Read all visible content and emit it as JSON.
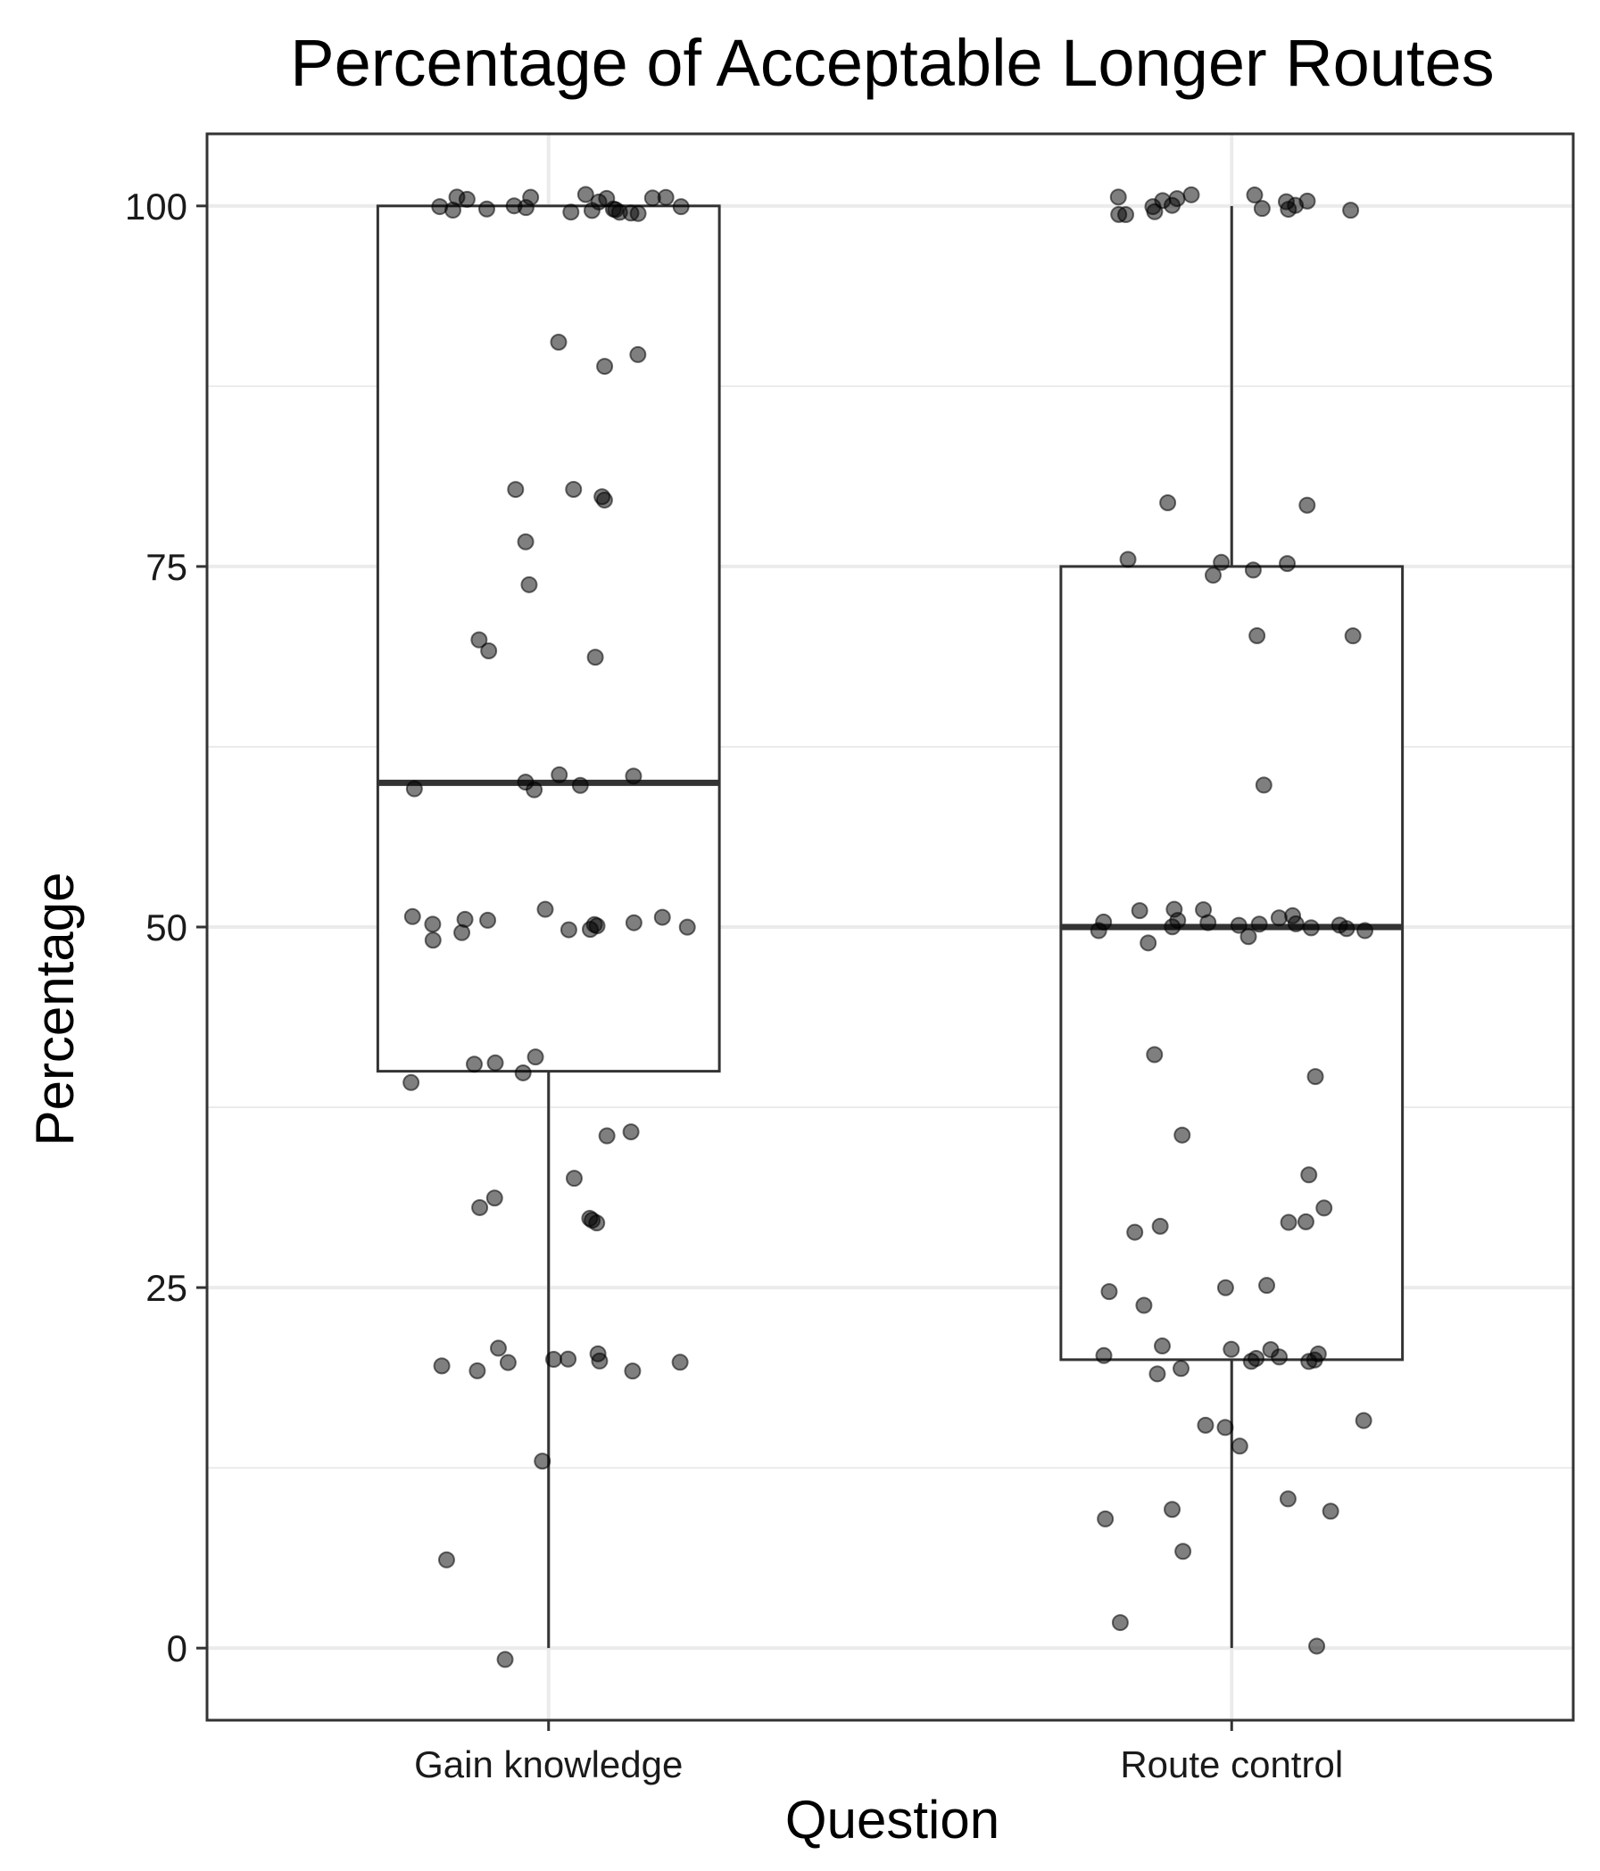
{
  "chart_data": {
    "type": "box",
    "title": "Percentage of Acceptable Longer Routes",
    "xlabel": "Question",
    "ylabel": "Percentage",
    "categories": [
      "Gain knowledge",
      "Route control"
    ],
    "ylim": [
      -5,
      105
    ],
    "yticks": [
      "0",
      "25",
      "50",
      "75",
      "100"
    ],
    "ytick_values": [
      0,
      25,
      50,
      75,
      100
    ],
    "grid": true,
    "colors": {
      "point": "#000000",
      "box": "#333333",
      "grid": "#ebebeb",
      "panel_border": "#333333"
    },
    "boxes": [
      {
        "category": "Gain knowledge",
        "min": 0,
        "q1": 40,
        "median": 60,
        "q3": 100,
        "max": 100
      },
      {
        "category": "Route control",
        "min": 0,
        "q1": 20,
        "median": 50,
        "q3": 75,
        "max": 100
      }
    ],
    "points": [
      [
        100,
        100,
        100,
        100,
        100,
        100,
        100,
        100,
        100,
        100,
        100,
        100,
        100,
        100,
        100,
        100,
        100,
        100,
        100,
        100,
        100,
        90,
        90,
        89.5,
        81,
        80,
        80,
        80.5,
        76,
        74.5,
        70.5,
        69.5,
        69.5,
        60.5,
        60.5,
        60,
        59.5,
        59.5,
        59.5,
        50.5,
        50.5,
        50.5,
        50.5,
        50.5,
        50,
        50,
        50,
        50,
        49.5,
        49.5,
        49.5,
        49.5,
        49.5,
        40.5,
        40,
        40,
        40,
        39.5,
        35,
        35,
        32,
        32,
        30.5,
        29.5,
        29.5,
        29,
        20.5,
        20.5,
        20.5,
        20.5,
        20,
        19.5,
        19.5,
        19.5,
        19.5,
        19.5,
        13,
        5.5,
        0
      ],
      [
        100,
        100,
        100,
        100,
        100,
        100,
        100,
        100,
        100,
        100,
        100,
        100,
        100,
        100,
        100,
        100,
        80,
        80,
        75.5,
        75.5,
        75,
        75,
        74.5,
        70.5,
        69.5,
        60,
        50.5,
        50.5,
        50.5,
        50.5,
        50.5,
        50.5,
        50.5,
        50,
        50,
        50,
        50,
        50,
        50,
        49.5,
        49.5,
        49.5,
        49.5,
        49.5,
        49.5,
        40.5,
        40,
        35,
        32.5,
        30,
        30,
        30,
        29.5,
        29.5,
        25,
        25,
        24.5,
        24.5,
        20.5,
        20.5,
        20.5,
        20.5,
        20.5,
        20,
        20,
        20,
        19.5,
        19.5,
        19.5,
        19.5,
        15.5,
        15.5,
        15,
        14,
        10,
        10,
        9.5,
        9.5,
        7.5,
        1,
        0
      ]
    ]
  }
}
